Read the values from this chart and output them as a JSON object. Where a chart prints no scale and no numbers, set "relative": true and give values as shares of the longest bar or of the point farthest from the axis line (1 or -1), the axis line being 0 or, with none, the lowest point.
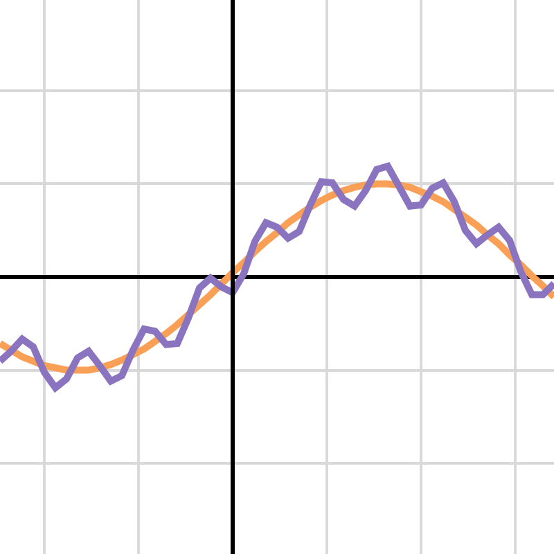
{
  "chart_data": {
    "type": "line",
    "relative": true,
    "grid": true,
    "marker": "none",
    "line_style": "solid",
    "categories": [
      null,
      null,
      null,
      null,
      null,
      null,
      null,
      null,
      null,
      null,
      null,
      null,
      null,
      null,
      null,
      null,
      null,
      null,
      null,
      null,
      null,
      null,
      null,
      null,
      null,
      null,
      null,
      null,
      null,
      null,
      null,
      null,
      null,
      null,
      null,
      null,
      null,
      null,
      null,
      null,
      null,
      null,
      null,
      null,
      null,
      null,
      null,
      null,
      null,
      null,
      null
    ],
    "series": [
      {
        "color": "#f9a056",
        "values": [
          -0.6,
          -0.66,
          -0.72,
          -0.76,
          -0.8,
          -0.82,
          -0.84,
          -0.84,
          -0.84,
          -0.82,
          -0.79,
          -0.75,
          -0.7,
          -0.65,
          -0.58,
          -0.51,
          -0.43,
          -0.34,
          -0.25,
          -0.16,
          -0.06,
          0.04,
          0.13,
          0.23,
          0.32,
          0.4,
          0.49,
          0.56,
          0.63,
          0.69,
          0.74,
          0.78,
          0.81,
          0.83,
          0.84,
          0.84,
          0.83,
          0.81,
          0.77,
          0.73,
          0.68,
          0.61,
          0.54,
          0.47,
          0.38,
          0.3,
          0.2,
          0.11,
          0.01,
          -0.08,
          -0.18
        ]
      },
      {
        "color": "#8a74c0",
        "values": [
          -0.76,
          -0.67,
          -0.56,
          -0.63,
          -0.86,
          -1.0,
          -0.92,
          -0.73,
          -0.67,
          -0.8,
          -0.94,
          -0.89,
          -0.66,
          -0.47,
          -0.49,
          -0.61,
          -0.6,
          -0.37,
          -0.1,
          -0.01,
          -0.09,
          -0.14,
          0.03,
          0.32,
          0.49,
          0.45,
          0.35,
          0.41,
          0.65,
          0.86,
          0.85,
          0.7,
          0.64,
          0.78,
          0.97,
          1,
          0.82,
          0.64,
          0.65,
          0.8,
          0.85,
          0.68,
          0.42,
          0.3,
          0.38,
          0.45,
          0.33,
          0.05,
          -0.16,
          -0.16,
          -0.06
        ]
      }
    ]
  }
}
